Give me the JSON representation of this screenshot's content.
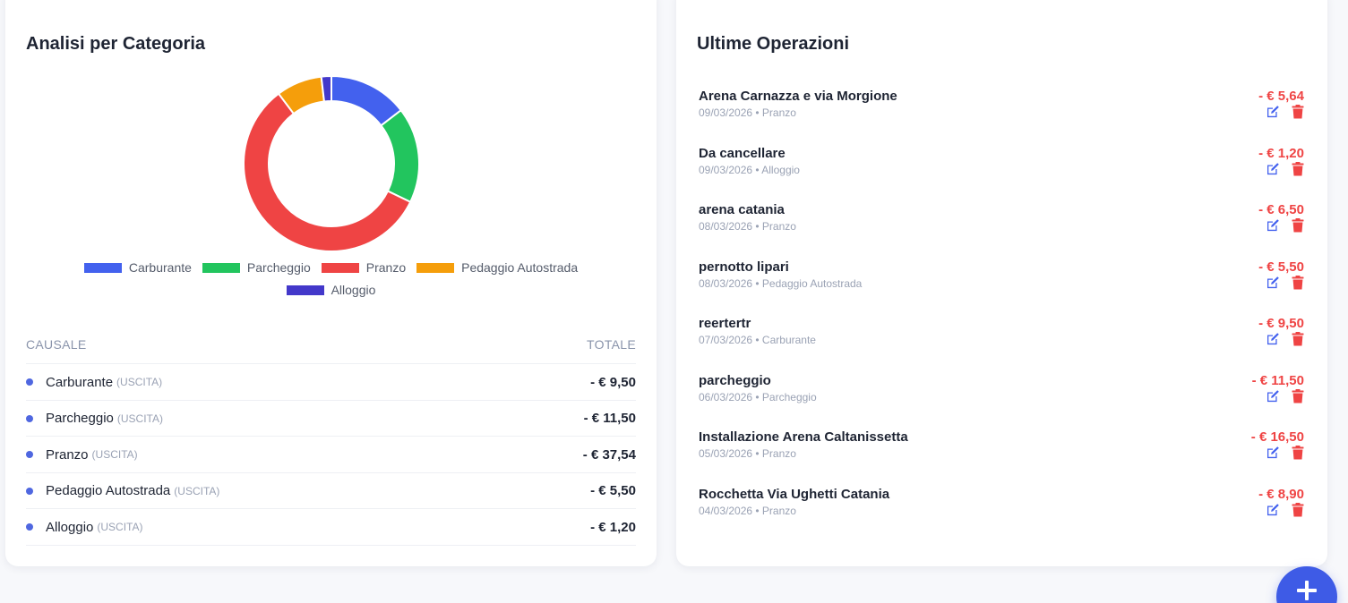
{
  "left_card": {
    "title": "Analisi per Categoria",
    "chart_data": {
      "type": "pie",
      "categories": [
        "Carburante",
        "Parcheggio",
        "Pranzo",
        "Pedaggio Autostrada",
        "Alloggio"
      ],
      "values": [
        9.5,
        11.5,
        37.54,
        5.5,
        1.2
      ],
      "colors": [
        "#4361ee",
        "#22c55e",
        "#ef4444",
        "#f59e0b",
        "#4338ca"
      ],
      "title": "",
      "legend": "bottom",
      "donut": true
    },
    "table": {
      "header_causale": "CAUSALE",
      "header_totale": "TOTALE",
      "rows": [
        {
          "name": "Carburante",
          "tag": "(USCITA)",
          "amount": "- € 9,50"
        },
        {
          "name": "Parcheggio",
          "tag": "(USCITA)",
          "amount": "- € 11,50"
        },
        {
          "name": "Pranzo",
          "tag": "(USCITA)",
          "amount": "- € 37,54"
        },
        {
          "name": "Pedaggio Autostrada",
          "tag": "(USCITA)",
          "amount": "- € 5,50"
        },
        {
          "name": "Alloggio",
          "tag": "(USCITA)",
          "amount": "- € 1,20"
        }
      ]
    }
  },
  "right_card": {
    "title": "Ultime Operazioni",
    "operations": [
      {
        "title": "Arena Carnazza e via Morgione",
        "meta": "09/03/2026 • Pranzo",
        "amount": "- € 5,64"
      },
      {
        "title": "Da cancellare",
        "meta": "09/03/2026 • Alloggio",
        "amount": "- € 1,20"
      },
      {
        "title": "arena catania",
        "meta": "08/03/2026 • Pranzo",
        "amount": "- € 6,50"
      },
      {
        "title": "pernotto lipari",
        "meta": "08/03/2026 • Pedaggio Autostrada",
        "amount": "- € 5,50"
      },
      {
        "title": "reertertr",
        "meta": "07/03/2026 • Carburante",
        "amount": "- € 9,50"
      },
      {
        "title": "parcheggio",
        "meta": "06/03/2026 • Parcheggio",
        "amount": "- € 11,50"
      },
      {
        "title": "Installazione Arena Caltanissetta",
        "meta": "05/03/2026 • Pranzo",
        "amount": "- € 16,50"
      },
      {
        "title": "Rocchetta Via Ughetti Catania",
        "meta": "04/03/2026 • Pranzo",
        "amount": "- € 8,90"
      }
    ],
    "icons": {
      "edit": "edit-icon",
      "delete": "trash-icon"
    }
  },
  "fab": {
    "icon": "plus-icon",
    "label": "+"
  }
}
